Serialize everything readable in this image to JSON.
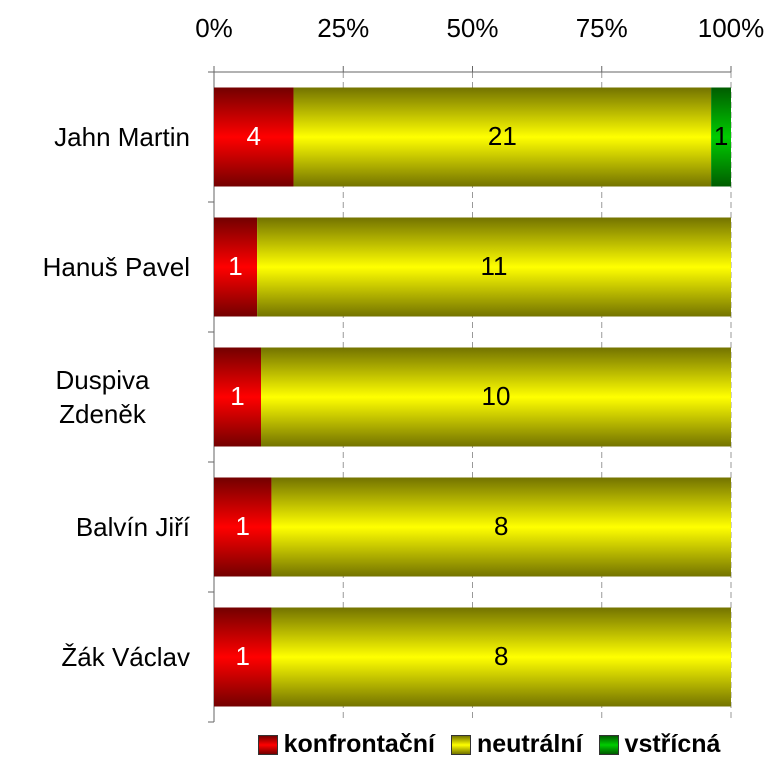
{
  "chart_data": {
    "type": "bar",
    "orientation": "horizontal",
    "stacking": "percent",
    "categories": [
      "Jahn Martin",
      "Hanuš Pavel",
      "Duspiva Zdeněk",
      "Balvín Jiří",
      "Žák Václav"
    ],
    "series": [
      {
        "name": "konfrontační",
        "color": "#ff0000",
        "label_color": "#ffffff",
        "values": [
          4,
          1,
          1,
          1,
          1
        ]
      },
      {
        "name": "neutrální",
        "color": "#ffff00",
        "label_color": "#000000",
        "values": [
          21,
          11,
          10,
          8,
          8
        ]
      },
      {
        "name": "vstřícná",
        "color": "#00cc00",
        "label_color": "#000000",
        "values": [
          1,
          0,
          0,
          0,
          0
        ]
      }
    ],
    "xlim": [
      0,
      100
    ],
    "xticks": [
      {
        "value": 0,
        "label": "0%"
      },
      {
        "value": 25,
        "label": "25%"
      },
      {
        "value": 50,
        "label": "50%"
      },
      {
        "value": 75,
        "label": "75%"
      },
      {
        "value": 100,
        "label": "100%"
      }
    ],
    "grid": true,
    "legend": "bottom"
  }
}
